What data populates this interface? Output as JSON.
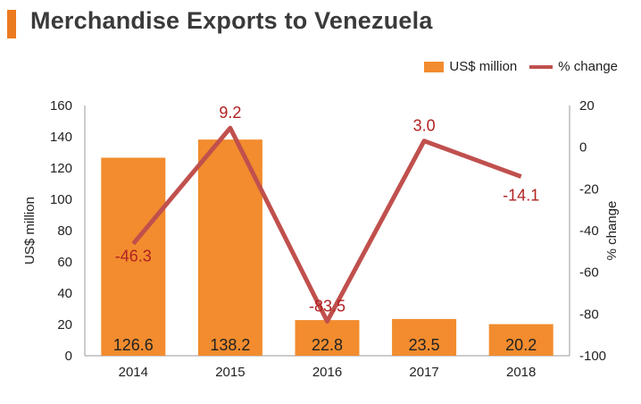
{
  "colors": {
    "accent": "#ec7a1f",
    "bar": "#f28c2e",
    "line": "#c0504d",
    "line_label": "#b22222",
    "text": "#222222",
    "axis": "#999999"
  },
  "chart_data": {
    "type": "bar",
    "title": "Merchandise Exports to Venezuela",
    "categories": [
      "2014",
      "2015",
      "2016",
      "2017",
      "2018"
    ],
    "series": [
      {
        "name": "US$ million",
        "type": "bar",
        "axis": "left",
        "values": [
          126.6,
          138.2,
          22.8,
          23.5,
          20.2
        ],
        "labels": [
          "126.6",
          "138.2",
          "22.8",
          "23.5",
          "20.2"
        ]
      },
      {
        "name": "% change",
        "type": "line",
        "axis": "right",
        "values": [
          -46.3,
          9.2,
          -83.5,
          3.0,
          -14.1
        ],
        "labels": [
          "-46.3",
          "9.2",
          "-83.5",
          "3.0",
          "-14.1"
        ]
      }
    ],
    "ylabel": "US$ million",
    "y2label": "% change",
    "ylim": [
      0,
      160
    ],
    "y2lim": [
      -100,
      20
    ],
    "yticks": [
      "0",
      "20",
      "40",
      "60",
      "80",
      "100",
      "120",
      "140",
      "160"
    ],
    "y2ticks": [
      "-100",
      "-80",
      "-60",
      "-40",
      "-20",
      "0",
      "20"
    ],
    "legend_position": "top-right",
    "grid": false
  }
}
